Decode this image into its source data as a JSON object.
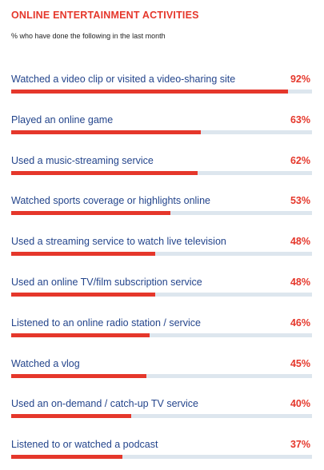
{
  "chart_data": {
    "type": "bar",
    "title": "ONLINE ENTERTAINMENT ACTIVITIES",
    "subtitle": "% who have done the following in the last month",
    "ylim": [
      0,
      100
    ],
    "accent_color": "#e5372b",
    "track_color": "#dde6ee",
    "label_color": "#24458c",
    "categories": [
      "Watched a video clip or visited a video-sharing site",
      "Played an online game",
      "Used a music-streaming service",
      "Watched sports coverage or highlights online",
      "Used a streaming service to watch live television",
      "Used an online TV/film subscription service",
      "Listened to an online radio station / service",
      "Watched a vlog",
      "Used an on-demand / catch-up TV service",
      "Listened to or watched a podcast"
    ],
    "values": [
      92,
      63,
      62,
      53,
      48,
      48,
      46,
      45,
      40,
      37
    ],
    "value_labels": [
      "92%",
      "63%",
      "62%",
      "53%",
      "48%",
      "48%",
      "46%",
      "45%",
      "40%",
      "37%"
    ]
  }
}
